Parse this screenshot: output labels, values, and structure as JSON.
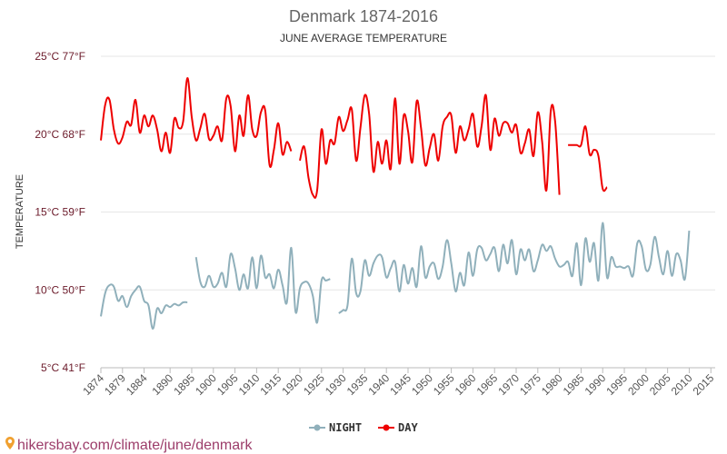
{
  "chart_data": {
    "type": "line",
    "title": "Denmark 1874-2016",
    "subtitle": "JUNE AVERAGE TEMPERATURE",
    "ylabel": "TEMPERATURE",
    "xlabel": "",
    "ylim": [
      5,
      25
    ],
    "xlim": [
      1874,
      2016
    ],
    "y_ticks": [
      {
        "value": 25,
        "label": "25°C 77°F"
      },
      {
        "value": 20,
        "label": "20°C 68°F"
      },
      {
        "value": 15,
        "label": "15°C 59°F"
      },
      {
        "value": 10,
        "label": "10°C 50°F"
      },
      {
        "value": 5,
        "label": "5°C 41°F"
      }
    ],
    "x_ticks": [
      "1874",
      "1879",
      "1884",
      "1890",
      "1895",
      "1900",
      "1905",
      "1910",
      "1915",
      "1920",
      "1925",
      "1930",
      "1935",
      "1940",
      "1945",
      "1950",
      "1955",
      "1960",
      "1965",
      "1970",
      "1975",
      "1980",
      "1985",
      "1990",
      "1995",
      "2000",
      "2005",
      "2010",
      "2015"
    ],
    "x_tick_values": [
      1874,
      1879,
      1884,
      1890,
      1895,
      1900,
      1905,
      1910,
      1915,
      1920,
      1925,
      1930,
      1935,
      1940,
      1945,
      1950,
      1955,
      1960,
      1965,
      1970,
      1975,
      1980,
      1985,
      1990,
      1995,
      2000,
      2005,
      2010,
      2015
    ],
    "grid": true,
    "legend_position": "bottom",
    "series": [
      {
        "name": "NIGHT",
        "color": "#90b0bb",
        "points": [
          [
            1874,
            8.3
          ],
          [
            1875,
            9.8
          ],
          [
            1876,
            10.3
          ],
          [
            1877,
            10.2
          ],
          [
            1878,
            9.3
          ],
          [
            1879,
            9.6
          ],
          [
            1880,
            8.9
          ],
          [
            1881,
            9.6
          ],
          [
            1882,
            10.0
          ],
          [
            1883,
            10.2
          ],
          [
            1884,
            9.3
          ],
          [
            1885,
            9.0
          ],
          [
            1886,
            7.5
          ],
          [
            1887,
            8.8
          ],
          [
            1888,
            8.5
          ],
          [
            1889,
            9.0
          ],
          [
            1890,
            8.9
          ],
          [
            1891,
            9.1
          ],
          [
            1892,
            9.0
          ],
          [
            1893,
            9.2
          ],
          [
            1894,
            9.2
          ],
          [
            1896,
            12.1
          ],
          [
            1897,
            10.5
          ],
          [
            1898,
            10.2
          ],
          [
            1899,
            10.9
          ],
          [
            1900,
            10.2
          ],
          [
            1901,
            10.4
          ],
          [
            1902,
            11.1
          ],
          [
            1903,
            10.2
          ],
          [
            1904,
            12.3
          ],
          [
            1905,
            11.4
          ],
          [
            1906,
            10.0
          ],
          [
            1907,
            11.0
          ],
          [
            1908,
            10.1
          ],
          [
            1909,
            12.1
          ],
          [
            1910,
            10.1
          ],
          [
            1911,
            12.2
          ],
          [
            1912,
            10.8
          ],
          [
            1913,
            11.0
          ],
          [
            1914,
            10.1
          ],
          [
            1915,
            11.3
          ],
          [
            1916,
            10.3
          ],
          [
            1917,
            9.2
          ],
          [
            1918,
            12.7
          ],
          [
            1919,
            8.6
          ],
          [
            1920,
            10.1
          ],
          [
            1921,
            10.5
          ],
          [
            1922,
            10.4
          ],
          [
            1923,
            9.6
          ],
          [
            1924,
            7.9
          ],
          [
            1925,
            10.6
          ],
          [
            1926,
            10.6
          ],
          [
            1927,
            10.7
          ],
          [
            1929,
            8.5
          ],
          [
            1930,
            8.7
          ],
          [
            1931,
            9.0
          ],
          [
            1932,
            12.0
          ],
          [
            1933,
            9.8
          ],
          [
            1934,
            9.9
          ],
          [
            1935,
            11.9
          ],
          [
            1936,
            10.9
          ],
          [
            1937,
            11.7
          ],
          [
            1938,
            12.2
          ],
          [
            1939,
            12.1
          ],
          [
            1940,
            10.8
          ],
          [
            1941,
            11.4
          ],
          [
            1942,
            11.8
          ],
          [
            1943,
            9.9
          ],
          [
            1944,
            11.6
          ],
          [
            1945,
            10.4
          ],
          [
            1946,
            11.4
          ],
          [
            1947,
            10.2
          ],
          [
            1948,
            12.8
          ],
          [
            1949,
            10.8
          ],
          [
            1950,
            11.5
          ],
          [
            1951,
            11.7
          ],
          [
            1952,
            10.7
          ],
          [
            1953,
            11.5
          ],
          [
            1954,
            13.2
          ],
          [
            1955,
            11.7
          ],
          [
            1956,
            9.9
          ],
          [
            1957,
            11.1
          ],
          [
            1958,
            10.3
          ],
          [
            1959,
            12.4
          ],
          [
            1960,
            10.9
          ],
          [
            1961,
            12.6
          ],
          [
            1962,
            12.7
          ],
          [
            1963,
            11.9
          ],
          [
            1964,
            12.3
          ],
          [
            1965,
            12.7
          ],
          [
            1966,
            11.2
          ],
          [
            1967,
            12.9
          ],
          [
            1968,
            11.7
          ],
          [
            1969,
            13.2
          ],
          [
            1970,
            11.0
          ],
          [
            1971,
            12.6
          ],
          [
            1972,
            11.9
          ],
          [
            1973,
            12.6
          ],
          [
            1974,
            11.2
          ],
          [
            1975,
            11.9
          ],
          [
            1976,
            12.9
          ],
          [
            1977,
            12.5
          ],
          [
            1978,
            12.8
          ],
          [
            1979,
            12.0
          ],
          [
            1980,
            11.5
          ],
          [
            1981,
            11.6
          ],
          [
            1982,
            11.8
          ],
          [
            1983,
            10.9
          ],
          [
            1984,
            13.0
          ],
          [
            1985,
            10.3
          ],
          [
            1986,
            13.3
          ],
          [
            1987,
            11.8
          ],
          [
            1988,
            13.0
          ],
          [
            1989,
            10.6
          ],
          [
            1990,
            14.3
          ],
          [
            1991,
            10.8
          ],
          [
            1992,
            12.1
          ],
          [
            1993,
            11.5
          ],
          [
            1994,
            11.5
          ],
          [
            1995,
            11.4
          ],
          [
            1996,
            11.5
          ],
          [
            1997,
            10.9
          ],
          [
            1998,
            13.0
          ],
          [
            1999,
            12.8
          ],
          [
            2000,
            11.3
          ],
          [
            2001,
            11.6
          ],
          [
            2002,
            13.4
          ],
          [
            2003,
            12.1
          ],
          [
            2004,
            11.0
          ],
          [
            2005,
            12.5
          ],
          [
            2006,
            10.9
          ],
          [
            2007,
            12.3
          ],
          [
            2008,
            11.9
          ],
          [
            2009,
            10.7
          ],
          [
            2010,
            13.8
          ]
        ]
      },
      {
        "name": "DAY",
        "color": "#ee0000",
        "points": [
          [
            1874,
            19.6
          ],
          [
            1875,
            21.9
          ],
          [
            1876,
            22.2
          ],
          [
            1877,
            20.3
          ],
          [
            1878,
            19.4
          ],
          [
            1879,
            19.8
          ],
          [
            1880,
            20.8
          ],
          [
            1881,
            20.6
          ],
          [
            1882,
            22.2
          ],
          [
            1883,
            20.1
          ],
          [
            1884,
            21.2
          ],
          [
            1885,
            20.5
          ],
          [
            1886,
            21.2
          ],
          [
            1887,
            20.3
          ],
          [
            1888,
            18.9
          ],
          [
            1889,
            20.1
          ],
          [
            1890,
            18.8
          ],
          [
            1891,
            21.0
          ],
          [
            1892,
            20.4
          ],
          [
            1893,
            20.8
          ],
          [
            1894,
            23.6
          ],
          [
            1895,
            21.1
          ],
          [
            1896,
            19.6
          ],
          [
            1897,
            20.4
          ],
          [
            1898,
            21.3
          ],
          [
            1899,
            19.7
          ],
          [
            1900,
            19.9
          ],
          [
            1901,
            20.5
          ],
          [
            1902,
            19.6
          ],
          [
            1903,
            22.3
          ],
          [
            1904,
            21.8
          ],
          [
            1905,
            18.9
          ],
          [
            1906,
            21.2
          ],
          [
            1907,
            19.9
          ],
          [
            1908,
            22.5
          ],
          [
            1909,
            20.3
          ],
          [
            1910,
            19.9
          ],
          [
            1911,
            21.4
          ],
          [
            1912,
            21.5
          ],
          [
            1913,
            18.0
          ],
          [
            1914,
            19.0
          ],
          [
            1915,
            20.7
          ],
          [
            1916,
            18.7
          ],
          [
            1917,
            19.5
          ],
          [
            1918,
            18.9
          ],
          [
            1920,
            18.3
          ],
          [
            1921,
            19.2
          ],
          [
            1922,
            17.2
          ],
          [
            1923,
            16.1
          ],
          [
            1924,
            16.4
          ],
          [
            1925,
            20.3
          ],
          [
            1926,
            18.1
          ],
          [
            1927,
            19.6
          ],
          [
            1928,
            19.4
          ],
          [
            1929,
            21.1
          ],
          [
            1930,
            20.2
          ],
          [
            1931,
            20.9
          ],
          [
            1932,
            21.6
          ],
          [
            1933,
            18.3
          ],
          [
            1934,
            20.4
          ],
          [
            1935,
            22.5
          ],
          [
            1936,
            21.3
          ],
          [
            1937,
            17.6
          ],
          [
            1938,
            19.5
          ],
          [
            1939,
            18.1
          ],
          [
            1940,
            19.6
          ],
          [
            1941,
            17.8
          ],
          [
            1942,
            22.3
          ],
          [
            1943,
            18.1
          ],
          [
            1944,
            21.2
          ],
          [
            1945,
            20.2
          ],
          [
            1946,
            18.2
          ],
          [
            1947,
            22.1
          ],
          [
            1948,
            20.4
          ],
          [
            1949,
            18.0
          ],
          [
            1950,
            19.1
          ],
          [
            1951,
            20.0
          ],
          [
            1952,
            18.3
          ],
          [
            1953,
            20.5
          ],
          [
            1954,
            21.1
          ],
          [
            1955,
            21.2
          ],
          [
            1956,
            18.8
          ],
          [
            1957,
            20.5
          ],
          [
            1958,
            19.6
          ],
          [
            1959,
            20.3
          ],
          [
            1960,
            21.3
          ],
          [
            1961,
            19.2
          ],
          [
            1962,
            20.5
          ],
          [
            1963,
            22.5
          ],
          [
            1964,
            19.0
          ],
          [
            1965,
            21.0
          ],
          [
            1966,
            19.9
          ],
          [
            1967,
            20.7
          ],
          [
            1968,
            20.7
          ],
          [
            1969,
            20.1
          ],
          [
            1970,
            20.6
          ],
          [
            1971,
            18.8
          ],
          [
            1972,
            19.4
          ],
          [
            1973,
            20.3
          ],
          [
            1974,
            18.6
          ],
          [
            1975,
            21.4
          ],
          [
            1976,
            19.5
          ],
          [
            1977,
            16.4
          ],
          [
            1978,
            21.5
          ],
          [
            1979,
            20.8
          ],
          [
            1980,
            16.1
          ],
          [
            1982,
            19.3
          ],
          [
            1983,
            19.3
          ],
          [
            1984,
            19.3
          ],
          [
            1985,
            19.3
          ],
          [
            1986,
            20.5
          ],
          [
            1987,
            18.7
          ],
          [
            1988,
            19.0
          ],
          [
            1989,
            18.6
          ],
          [
            1990,
            16.5
          ],
          [
            1991,
            16.6
          ]
        ]
      }
    ]
  },
  "watermark": "hikersbay.com/climate/june/denmark"
}
